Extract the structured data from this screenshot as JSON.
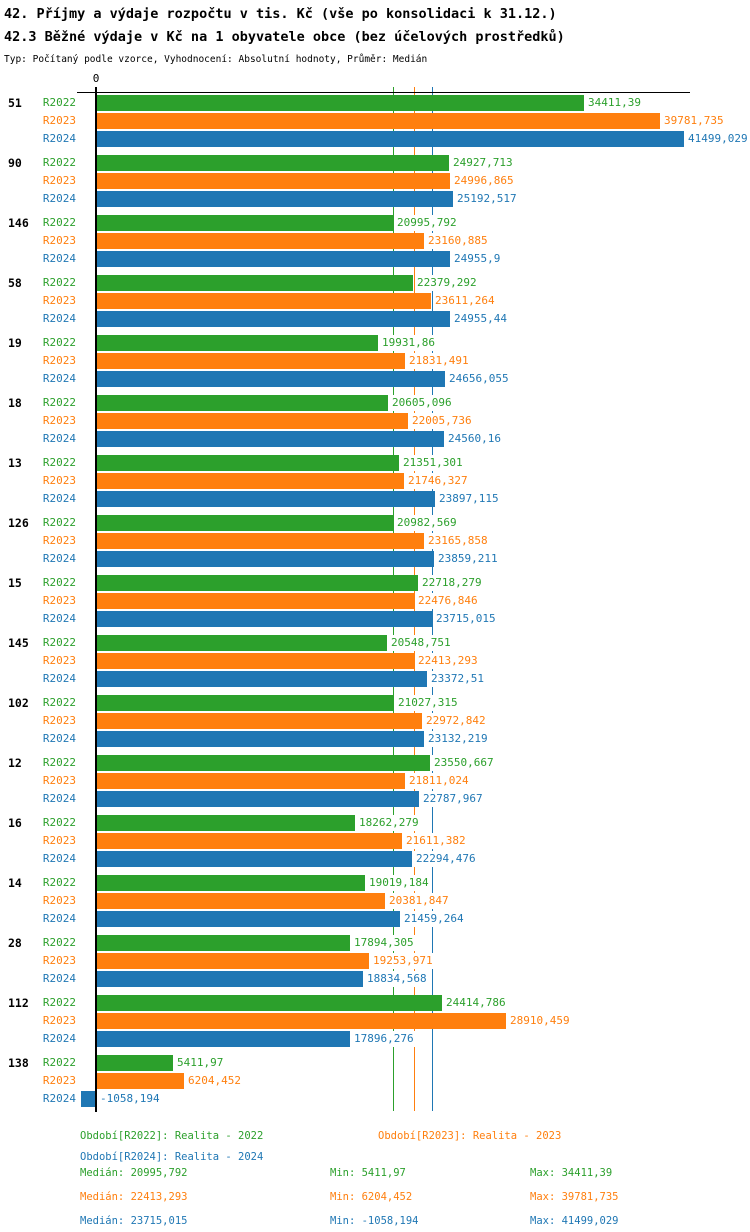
{
  "header": {
    "title1": "42. Příjmy a výdaje rozpočtu v tis. Kč (vše po konsolidaci k 31.12.)",
    "title2": "42.3 Běžné výdaje v Kč na 1 obyvatele obce (bez účelových prostředků)",
    "meta": "Typ: Počítaný podle vzorce, Vyhodnocení: Absolutní hodnoty, Průměr: Medián"
  },
  "chart_data": {
    "type": "bar",
    "orientation": "horizontal",
    "title": "42.3 Běžné výdaje v Kč na 1 obyvatele obce (bez účelových prostředků)",
    "xlabel": "",
    "ylabel": "",
    "axis": {
      "zero_label": "0",
      "xmin": -1058.194,
      "xmax": 41499.029,
      "grid": false
    },
    "series_names": [
      "R2022",
      "R2023",
      "R2024"
    ],
    "colors": {
      "R2022": "#2ca02c",
      "R2023": "#ff7f0e",
      "R2024": "#1f77b4"
    },
    "median_lines": [
      {
        "series": "R2022",
        "value": 20995.792,
        "color": "#2ca02c"
      },
      {
        "series": "R2023",
        "value": 22413.293,
        "color": "#ff7f0e"
      },
      {
        "series": "R2024",
        "value": 23715.015,
        "color": "#1f77b4"
      }
    ],
    "groups": [
      {
        "id": "51",
        "values": [
          34411.39,
          39781.735,
          41499.029
        ],
        "labels": [
          "34411,39",
          "39781,735",
          "41499,029"
        ]
      },
      {
        "id": "90",
        "values": [
          24927.713,
          24996.865,
          25192.517
        ],
        "labels": [
          "24927,713",
          "24996,865",
          "25192,517"
        ]
      },
      {
        "id": "146",
        "values": [
          20995.792,
          23160.885,
          24955.9
        ],
        "labels": [
          "20995,792",
          "23160,885",
          "24955,9"
        ]
      },
      {
        "id": "58",
        "values": [
          22379.292,
          23611.264,
          24955.44
        ],
        "labels": [
          "22379,292",
          "23611,264",
          "24955,44"
        ]
      },
      {
        "id": "19",
        "values": [
          19931.86,
          21831.491,
          24656.055
        ],
        "labels": [
          "19931,86",
          "21831,491",
          "24656,055"
        ]
      },
      {
        "id": "18",
        "values": [
          20605.096,
          22005.736,
          24560.16
        ],
        "labels": [
          "20605,096",
          "22005,736",
          "24560,16"
        ]
      },
      {
        "id": "13",
        "values": [
          21351.301,
          21746.327,
          23897.115
        ],
        "labels": [
          "21351,301",
          "21746,327",
          "23897,115"
        ]
      },
      {
        "id": "126",
        "values": [
          20982.569,
          23165.858,
          23859.211
        ],
        "labels": [
          "20982,569",
          "23165,858",
          "23859,211"
        ]
      },
      {
        "id": "15",
        "values": [
          22718.279,
          22476.846,
          23715.015
        ],
        "labels": [
          "22718,279",
          "22476,846",
          "23715,015"
        ]
      },
      {
        "id": "145",
        "values": [
          20548.751,
          22413.293,
          23372.51
        ],
        "labels": [
          "20548,751",
          "22413,293",
          "23372,51"
        ]
      },
      {
        "id": "102",
        "values": [
          21027.315,
          22972.842,
          23132.219
        ],
        "labels": [
          "21027,315",
          "22972,842",
          "23132,219"
        ]
      },
      {
        "id": "12",
        "values": [
          23550.667,
          21811.024,
          22787.967
        ],
        "labels": [
          "23550,667",
          "21811,024",
          "22787,967"
        ]
      },
      {
        "id": "16",
        "values": [
          18262.279,
          21611.382,
          22294.476
        ],
        "labels": [
          "18262,279",
          "21611,382",
          "22294,476"
        ]
      },
      {
        "id": "14",
        "values": [
          19019.184,
          20381.847,
          21459.264
        ],
        "labels": [
          "19019,184",
          "20381,847",
          "21459,264"
        ]
      },
      {
        "id": "28",
        "values": [
          17894.305,
          19253.971,
          18834.568
        ],
        "labels": [
          "17894,305",
          "19253,971",
          "18834,568"
        ]
      },
      {
        "id": "112",
        "values": [
          24414.786,
          28910.459,
          17896.276
        ],
        "labels": [
          "24414,786",
          "28910,459",
          "17896,276"
        ]
      },
      {
        "id": "138",
        "values": [
          5411.97,
          6204.452,
          -1058.194
        ],
        "labels": [
          "5411,97",
          "6204,452",
          "-1058,194"
        ]
      }
    ]
  },
  "legend": {
    "r2022": "Období[R2022]: Realita - 2022",
    "r2023": "Období[R2023]: Realita - 2023",
    "r2024": "Období[R2024]: Realita - 2024"
  },
  "stats": {
    "rows": [
      {
        "median": "Medián: 20995,792",
        "min": "Min: 5411,97",
        "max": "Max: 34411,39",
        "color": "#2ca02c"
      },
      {
        "median": "Medián: 22413,293",
        "min": "Min: 6204,452",
        "max": "Max: 39781,735",
        "color": "#ff7f0e"
      },
      {
        "median": "Medián: 23715,015",
        "min": "Min: -1058,194",
        "max": "Max: 41499,029",
        "color": "#1f77b4"
      }
    ]
  }
}
